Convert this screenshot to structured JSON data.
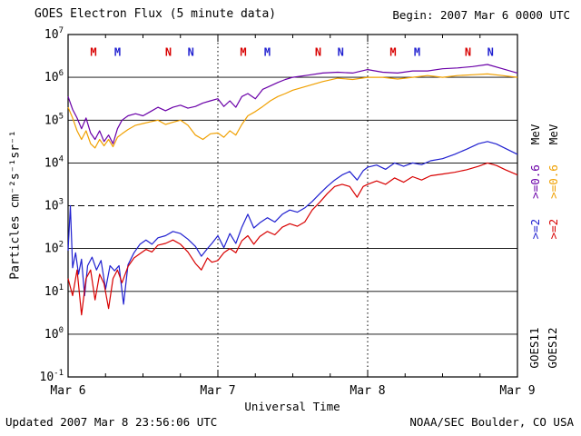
{
  "header": {
    "title": "GOES Electron Flux (5 minute data)",
    "begin_label": "Begin: 2007 Mar 6 0000 UTC"
  },
  "footer": {
    "updated": "Updated 2007 Mar 8 23:56:06 UTC",
    "source": "NOAA/SEC Boulder, CO USA"
  },
  "legend": {
    "goes11": {
      "name": "GOES11",
      "channels": [
        {
          "text": ">=2",
          "color": "#2020d0"
        },
        {
          "text": ">=0.6",
          "color": "#6a00a8"
        },
        {
          "text": "MeV",
          "color": "#000000"
        }
      ]
    },
    "goes12": {
      "name": "GOES12",
      "channels": [
        {
          "text": ">=2",
          "color": "#d80000"
        },
        {
          "text": ">=0.6",
          "color": "#f0a000"
        },
        {
          "text": "MeV",
          "color": "#000000"
        }
      ]
    }
  },
  "chart_data": {
    "type": "line",
    "title": "GOES Electron Flux (5 minute data)",
    "xlabel": "Universal Time",
    "ylabel": "Particles cm⁻²s⁻¹sr⁻¹",
    "x_range_days": [
      0,
      3
    ],
    "ylog_range": [
      -1,
      7
    ],
    "threshold_exp": 3,
    "marker_row_exp": 6.5,
    "x_ticks": [
      {
        "label": "Mar 6",
        "day": 0
      },
      {
        "label": "Mar 7",
        "day": 1
      },
      {
        "label": "Mar 8",
        "day": 2
      },
      {
        "label": "Mar 9",
        "day": 3
      }
    ],
    "y_ticks": [
      7,
      6,
      5,
      4,
      3,
      2,
      1,
      0,
      -1
    ],
    "markers": [
      {
        "label": "M",
        "day": 0.17,
        "satellite": "GOES12",
        "color": "#d80000"
      },
      {
        "label": "M",
        "day": 0.33,
        "satellite": "GOES11",
        "color": "#2020d0"
      },
      {
        "label": "N",
        "day": 0.67,
        "satellite": "GOES12",
        "color": "#d80000"
      },
      {
        "label": "N",
        "day": 0.82,
        "satellite": "GOES11",
        "color": "#2020d0"
      },
      {
        "label": "M",
        "day": 1.17,
        "satellite": "GOES12",
        "color": "#d80000"
      },
      {
        "label": "M",
        "day": 1.33,
        "satellite": "GOES11",
        "color": "#2020d0"
      },
      {
        "label": "N",
        "day": 1.67,
        "satellite": "GOES12",
        "color": "#d80000"
      },
      {
        "label": "N",
        "day": 1.82,
        "satellite": "GOES11",
        "color": "#2020d0"
      },
      {
        "label": "M",
        "day": 2.17,
        "satellite": "GOES12",
        "color": "#d80000"
      },
      {
        "label": "M",
        "day": 2.33,
        "satellite": "GOES11",
        "color": "#2020d0"
      },
      {
        "label": "N",
        "day": 2.67,
        "satellite": "GOES12",
        "color": "#d80000"
      },
      {
        "label": "N",
        "day": 2.82,
        "satellite": "GOES11",
        "color": "#2020d0"
      }
    ],
    "series": [
      {
        "id": "goes11-e06",
        "name": "GOES11 >=0.6 MeV",
        "color": "#6a00a8",
        "points": [
          [
            0.0,
            5.55
          ],
          [
            0.03,
            5.25
          ],
          [
            0.06,
            5.05
          ],
          [
            0.09,
            4.8
          ],
          [
            0.12,
            5.05
          ],
          [
            0.15,
            4.7
          ],
          [
            0.18,
            4.55
          ],
          [
            0.21,
            4.75
          ],
          [
            0.24,
            4.5
          ],
          [
            0.27,
            4.65
          ],
          [
            0.3,
            4.45
          ],
          [
            0.33,
            4.8
          ],
          [
            0.36,
            5.0
          ],
          [
            0.4,
            5.1
          ],
          [
            0.45,
            5.15
          ],
          [
            0.5,
            5.1
          ],
          [
            0.55,
            5.2
          ],
          [
            0.6,
            5.3
          ],
          [
            0.65,
            5.22
          ],
          [
            0.7,
            5.3
          ],
          [
            0.75,
            5.35
          ],
          [
            0.8,
            5.28
          ],
          [
            0.85,
            5.32
          ],
          [
            0.9,
            5.4
          ],
          [
            0.95,
            5.45
          ],
          [
            1.0,
            5.5
          ],
          [
            1.04,
            5.32
          ],
          [
            1.08,
            5.45
          ],
          [
            1.12,
            5.3
          ],
          [
            1.16,
            5.55
          ],
          [
            1.2,
            5.62
          ],
          [
            1.25,
            5.5
          ],
          [
            1.3,
            5.72
          ],
          [
            1.35,
            5.8
          ],
          [
            1.4,
            5.88
          ],
          [
            1.45,
            5.95
          ],
          [
            1.5,
            6.0
          ],
          [
            1.6,
            6.05
          ],
          [
            1.7,
            6.1
          ],
          [
            1.8,
            6.12
          ],
          [
            1.9,
            6.1
          ],
          [
            2.0,
            6.18
          ],
          [
            2.1,
            6.12
          ],
          [
            2.2,
            6.1
          ],
          [
            2.3,
            6.15
          ],
          [
            2.4,
            6.15
          ],
          [
            2.5,
            6.2
          ],
          [
            2.6,
            6.22
          ],
          [
            2.7,
            6.25
          ],
          [
            2.8,
            6.3
          ],
          [
            2.9,
            6.2
          ],
          [
            3.0,
            6.1
          ]
        ]
      },
      {
        "id": "goes12-e06",
        "name": "GOES12 >=0.6 MeV",
        "color": "#f0a000",
        "points": [
          [
            0.0,
            5.3
          ],
          [
            0.03,
            5.05
          ],
          [
            0.06,
            4.75
          ],
          [
            0.09,
            4.55
          ],
          [
            0.12,
            4.75
          ],
          [
            0.15,
            4.45
          ],
          [
            0.18,
            4.35
          ],
          [
            0.21,
            4.55
          ],
          [
            0.24,
            4.4
          ],
          [
            0.27,
            4.55
          ],
          [
            0.3,
            4.38
          ],
          [
            0.33,
            4.6
          ],
          [
            0.36,
            4.68
          ],
          [
            0.4,
            4.78
          ],
          [
            0.45,
            4.88
          ],
          [
            0.5,
            4.92
          ],
          [
            0.55,
            4.96
          ],
          [
            0.6,
            5.0
          ],
          [
            0.65,
            4.9
          ],
          [
            0.7,
            4.95
          ],
          [
            0.75,
            5.0
          ],
          [
            0.8,
            4.88
          ],
          [
            0.85,
            4.65
          ],
          [
            0.9,
            4.55
          ],
          [
            0.95,
            4.68
          ],
          [
            1.0,
            4.7
          ],
          [
            1.04,
            4.6
          ],
          [
            1.08,
            4.75
          ],
          [
            1.12,
            4.65
          ],
          [
            1.16,
            4.9
          ],
          [
            1.2,
            5.1
          ],
          [
            1.25,
            5.2
          ],
          [
            1.3,
            5.32
          ],
          [
            1.35,
            5.45
          ],
          [
            1.4,
            5.55
          ],
          [
            1.45,
            5.62
          ],
          [
            1.5,
            5.7
          ],
          [
            1.6,
            5.8
          ],
          [
            1.7,
            5.9
          ],
          [
            1.8,
            5.98
          ],
          [
            1.9,
            5.95
          ],
          [
            2.0,
            6.0
          ],
          [
            2.1,
            6.0
          ],
          [
            2.2,
            5.96
          ],
          [
            2.3,
            6.0
          ],
          [
            2.4,
            6.04
          ],
          [
            2.5,
            6.0
          ],
          [
            2.6,
            6.04
          ],
          [
            2.7,
            6.06
          ],
          [
            2.8,
            6.08
          ],
          [
            2.9,
            6.04
          ],
          [
            3.0,
            6.0
          ]
        ]
      },
      {
        "id": "goes11-e2",
        "name": "GOES11 >=2 MeV",
        "color": "#2020d0",
        "points": [
          [
            0.0,
            1.95
          ],
          [
            0.015,
            3.0
          ],
          [
            0.03,
            1.55
          ],
          [
            0.05,
            1.9
          ],
          [
            0.07,
            1.4
          ],
          [
            0.09,
            1.75
          ],
          [
            0.11,
            0.9
          ],
          [
            0.13,
            1.6
          ],
          [
            0.16,
            1.8
          ],
          [
            0.19,
            1.5
          ],
          [
            0.22,
            1.72
          ],
          [
            0.25,
            1.05
          ],
          [
            0.28,
            1.6
          ],
          [
            0.31,
            1.48
          ],
          [
            0.34,
            1.6
          ],
          [
            0.37,
            0.7
          ],
          [
            0.4,
            1.62
          ],
          [
            0.44,
            1.9
          ],
          [
            0.48,
            2.1
          ],
          [
            0.52,
            2.2
          ],
          [
            0.56,
            2.1
          ],
          [
            0.6,
            2.25
          ],
          [
            0.65,
            2.3
          ],
          [
            0.7,
            2.4
          ],
          [
            0.75,
            2.35
          ],
          [
            0.8,
            2.22
          ],
          [
            0.85,
            2.05
          ],
          [
            0.89,
            1.82
          ],
          [
            0.93,
            2.0
          ],
          [
            0.96,
            2.12
          ],
          [
            1.0,
            2.3
          ],
          [
            1.04,
            2.02
          ],
          [
            1.08,
            2.35
          ],
          [
            1.12,
            2.12
          ],
          [
            1.16,
            2.5
          ],
          [
            1.2,
            2.8
          ],
          [
            1.24,
            2.48
          ],
          [
            1.28,
            2.6
          ],
          [
            1.33,
            2.72
          ],
          [
            1.38,
            2.62
          ],
          [
            1.43,
            2.8
          ],
          [
            1.48,
            2.9
          ],
          [
            1.53,
            2.85
          ],
          [
            1.58,
            2.95
          ],
          [
            1.63,
            3.1
          ],
          [
            1.68,
            3.28
          ],
          [
            1.73,
            3.45
          ],
          [
            1.78,
            3.6
          ],
          [
            1.83,
            3.72
          ],
          [
            1.88,
            3.8
          ],
          [
            1.93,
            3.6
          ],
          [
            1.97,
            3.82
          ],
          [
            2.0,
            3.9
          ],
          [
            2.06,
            3.95
          ],
          [
            2.12,
            3.85
          ],
          [
            2.18,
            4.0
          ],
          [
            2.24,
            3.92
          ],
          [
            2.3,
            4.0
          ],
          [
            2.36,
            3.96
          ],
          [
            2.42,
            4.05
          ],
          [
            2.5,
            4.1
          ],
          [
            2.58,
            4.2
          ],
          [
            2.66,
            4.32
          ],
          [
            2.74,
            4.45
          ],
          [
            2.8,
            4.5
          ],
          [
            2.86,
            4.44
          ],
          [
            2.92,
            4.34
          ],
          [
            3.0,
            4.2
          ]
        ]
      },
      {
        "id": "goes12-e2",
        "name": "GOES12 >=2 MeV",
        "color": "#d80000",
        "points": [
          [
            0.0,
            1.3
          ],
          [
            0.03,
            0.9
          ],
          [
            0.06,
            1.5
          ],
          [
            0.09,
            0.45
          ],
          [
            0.12,
            1.3
          ],
          [
            0.15,
            1.5
          ],
          [
            0.18,
            0.8
          ],
          [
            0.21,
            1.4
          ],
          [
            0.24,
            1.18
          ],
          [
            0.27,
            0.6
          ],
          [
            0.3,
            1.3
          ],
          [
            0.33,
            1.5
          ],
          [
            0.36,
            1.2
          ],
          [
            0.4,
            1.58
          ],
          [
            0.44,
            1.78
          ],
          [
            0.48,
            1.88
          ],
          [
            0.52,
            1.98
          ],
          [
            0.56,
            1.92
          ],
          [
            0.6,
            2.08
          ],
          [
            0.65,
            2.12
          ],
          [
            0.7,
            2.2
          ],
          [
            0.75,
            2.1
          ],
          [
            0.8,
            1.92
          ],
          [
            0.85,
            1.65
          ],
          [
            0.89,
            1.5
          ],
          [
            0.93,
            1.78
          ],
          [
            0.96,
            1.68
          ],
          [
            1.0,
            1.72
          ],
          [
            1.04,
            1.9
          ],
          [
            1.08,
            2.0
          ],
          [
            1.12,
            1.9
          ],
          [
            1.16,
            2.18
          ],
          [
            1.2,
            2.3
          ],
          [
            1.24,
            2.1
          ],
          [
            1.28,
            2.28
          ],
          [
            1.33,
            2.4
          ],
          [
            1.38,
            2.32
          ],
          [
            1.43,
            2.5
          ],
          [
            1.48,
            2.58
          ],
          [
            1.53,
            2.52
          ],
          [
            1.58,
            2.62
          ],
          [
            1.63,
            2.9
          ],
          [
            1.68,
            3.08
          ],
          [
            1.73,
            3.28
          ],
          [
            1.78,
            3.45
          ],
          [
            1.83,
            3.5
          ],
          [
            1.88,
            3.45
          ],
          [
            1.93,
            3.2
          ],
          [
            1.97,
            3.45
          ],
          [
            2.0,
            3.5
          ],
          [
            2.06,
            3.58
          ],
          [
            2.12,
            3.5
          ],
          [
            2.18,
            3.65
          ],
          [
            2.24,
            3.55
          ],
          [
            2.3,
            3.68
          ],
          [
            2.36,
            3.6
          ],
          [
            2.42,
            3.7
          ],
          [
            2.5,
            3.74
          ],
          [
            2.58,
            3.78
          ],
          [
            2.66,
            3.84
          ],
          [
            2.74,
            3.92
          ],
          [
            2.8,
            4.0
          ],
          [
            2.86,
            3.94
          ],
          [
            2.92,
            3.84
          ],
          [
            3.0,
            3.72
          ]
        ]
      }
    ]
  }
}
